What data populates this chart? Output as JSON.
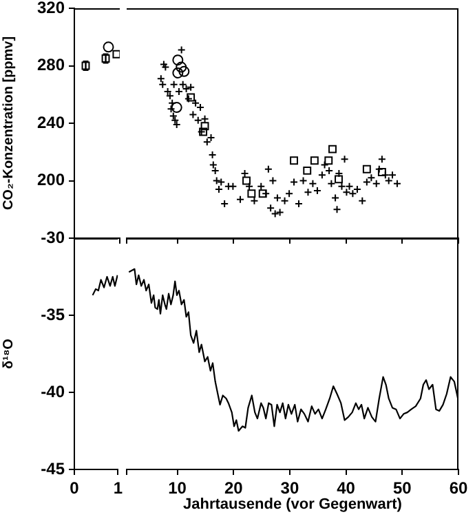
{
  "chart_data": [
    {
      "type": "scatter",
      "ylabel": "CO₂-Konzentration [ppmv]",
      "xlim": [
        0,
        1
      ],
      "xticks": [
        0,
        {
          "value": 1,
          "label": null
        }
      ],
      "ylim": [
        160,
        320
      ],
      "yticks": [
        200,
        240,
        280,
        320
      ],
      "tick_labels": "y",
      "legend": false,
      "series": [
        {
          "marker": "circle",
          "color": "#000000",
          "x": [
            0.75
          ],
          "values": [
            293
          ]
        },
        {
          "marker": "square",
          "color": "#000000",
          "x": [
            0.93
          ],
          "values": [
            288
          ]
        },
        {
          "marker": "square",
          "color": "#000000",
          "x": [
            0.25,
            0.69
          ],
          "values": [
            280,
            285
          ],
          "errors": [
            3,
            3
          ]
        }
      ]
    },
    {
      "type": "scatter",
      "xlim": [
        1,
        60
      ],
      "xticks": [
        1,
        10,
        20,
        30,
        40,
        50,
        60
      ],
      "ylim": [
        160,
        320
      ],
      "tick_labels": false,
      "legend": false,
      "series": [
        {
          "marker": "cross",
          "color": "#000000",
          "x": [
            7.1,
            7.6,
            7.4,
            7.9,
            8.3,
            8.7,
            8.9,
            9.3,
            9.6,
            9.9,
            9.1,
            9.4,
            10.3,
            10.75,
            11,
            11.6,
            12,
            12.4,
            12.8,
            13.25,
            13.7,
            14.1,
            14.3,
            14.9,
            15.3,
            16,
            16.25,
            16.4,
            16.75,
            17,
            17.4,
            17.8,
            18.4,
            19.1,
            19.9,
            21.2,
            22,
            22.8,
            23.7,
            24.9,
            25.75,
            26.2,
            26.6,
            27,
            27.4,
            27.8,
            28.25,
            29.1,
            29.9,
            30.75,
            31.6,
            32.4,
            33.25,
            34.1,
            34.9,
            35.75,
            36.2,
            37,
            37.4,
            38.1,
            38.4,
            38.75,
            39.25,
            39.75,
            40.1,
            40.6,
            41.2,
            42,
            42.9,
            43.7,
            44.5,
            45.4,
            45.9,
            46.4,
            47,
            47.6,
            48.25,
            49.1
          ],
          "values": [
            271,
            281,
            267,
            279,
            262,
            259,
            250,
            245,
            242,
            239,
            254,
            267,
            262,
            291,
            267,
            264,
            257,
            265,
            246,
            254,
            242,
            251,
            234,
            243,
            227,
            230,
            218,
            211,
            207,
            200,
            194,
            199,
            184,
            196,
            196,
            187,
            205,
            196,
            186,
            196,
            191,
            208,
            181,
            200,
            177,
            188,
            178,
            186,
            191,
            199,
            184,
            200,
            192,
            198,
            193,
            204,
            211,
            207,
            198,
            188,
            180,
            205,
            196,
            215,
            192,
            196,
            191,
            194,
            186,
            199,
            202,
            198,
            208,
            215,
            204,
            200,
            204,
            198
          ]
        },
        {
          "marker": "circle",
          "color": "#000000",
          "x": [
            10.1,
            10.1,
            10.7,
            11.2,
            9.9
          ],
          "values": [
            284,
            275,
            279,
            276,
            251
          ]
        },
        {
          "marker": "square",
          "color": "#000000",
          "x": [
            12.4,
            14.9,
            14.6,
            22.3,
            23.2,
            25.2,
            30.75,
            33.1,
            34.4,
            36.9,
            37.6,
            38.7,
            43.7,
            46.4
          ],
          "values": [
            258,
            238,
            234,
            200,
            191,
            191,
            214,
            207,
            214,
            214,
            222,
            201,
            208,
            206
          ]
        }
      ]
    },
    {
      "type": "line",
      "ylabel": "δ¹⁸O",
      "xlim": [
        0,
        1
      ],
      "xticks": [
        0,
        1
      ],
      "ylim": [
        -45,
        -30
      ],
      "yticks": [
        -45,
        -40,
        -35,
        -30
      ],
      "legend": false,
      "marker": "none",
      "line_style": "solid",
      "series": [
        {
          "color": "#000000",
          "x": [
            0.42,
            0.49,
            0.55,
            0.61,
            0.68,
            0.75,
            0.82,
            0.88,
            0.93,
            0.99
          ],
          "values": [
            -33.7,
            -33.3,
            -33.4,
            -32.7,
            -33.2,
            -32.5,
            -33.1,
            -32.5,
            -33.1,
            -32.4
          ]
        }
      ]
    },
    {
      "type": "line",
      "xlabel": "Jahrtausende (vor Gegenwart)",
      "xlim": [
        1,
        60
      ],
      "xticks": [
        {
          "value": 1,
          "label": null
        },
        10,
        20,
        30,
        40,
        50,
        60
      ],
      "ylim": [
        -45,
        -30
      ],
      "tick_labels": "x",
      "legend": false,
      "marker": "none",
      "line_style": "solid",
      "series": [
        {
          "color": "#000000",
          "x": [
            1.4,
            2.4,
            2.73,
            3.13,
            3.6,
            4.07,
            4.47,
            4.93,
            5.4,
            5.8,
            6.07,
            6.47,
            6.73,
            7,
            7.4,
            7.8,
            8.07,
            8.47,
            8.87,
            9.27,
            9.6,
            9.93,
            10.3,
            10.75,
            11.2,
            11.6,
            12,
            12.4,
            12.9,
            13.4,
            13.9,
            14.3,
            14.9,
            15.4,
            15.9,
            16.3,
            16.75,
            17.2,
            17.6,
            18.1,
            18.7,
            19.1,
            19.7,
            20.1,
            20.5,
            20.9,
            21.6,
            22.1,
            22.6,
            23.25,
            23.8,
            24.25,
            24.9,
            25.3,
            25.75,
            26.25,
            26.75,
            27.25,
            27.75,
            28.25,
            28.75,
            29.25,
            29.75,
            30.3,
            30.9,
            31.4,
            32,
            32.6,
            33.25,
            33.9,
            34.5,
            35.1,
            35.75,
            36.4,
            37.1,
            37.75,
            38.4,
            39.1,
            39.75,
            40.4,
            41.1,
            41.75,
            42.25,
            42.75,
            43.25,
            43.9,
            44.6,
            45.25,
            45.9,
            46.6,
            47.1,
            47.6,
            48.25,
            48.9,
            49.6,
            50.25,
            50.9,
            51.6,
            52.4,
            53.25,
            53.75,
            54.25,
            54.75,
            55.4,
            56,
            56.6,
            57.25,
            57.9,
            58.6,
            59.25,
            59.9
          ],
          "values": [
            -32.2,
            -32,
            -33,
            -32.4,
            -33.1,
            -32.7,
            -33.4,
            -33,
            -34.2,
            -33.7,
            -34.5,
            -34.6,
            -34,
            -34.9,
            -33.7,
            -34.3,
            -34.6,
            -33.6,
            -34.3,
            -33.7,
            -32.8,
            -33.7,
            -33.4,
            -34.3,
            -34,
            -35.1,
            -34.8,
            -36.3,
            -36.8,
            -36,
            -37.4,
            -36.9,
            -38,
            -37.7,
            -38.6,
            -38.1,
            -39.3,
            -40.1,
            -40.8,
            -40.2,
            -40.4,
            -40.7,
            -41.3,
            -42.2,
            -41.8,
            -42.5,
            -42.2,
            -42.3,
            -41,
            -40.2,
            -41.3,
            -41.7,
            -40.7,
            -41,
            -41.7,
            -40.7,
            -40.8,
            -42.2,
            -40.8,
            -41.3,
            -40.7,
            -41.7,
            -40.8,
            -41.4,
            -40.8,
            -41.9,
            -41.1,
            -41.4,
            -41.9,
            -40.9,
            -41.4,
            -41.1,
            -41.7,
            -41.1,
            -40.4,
            -39.6,
            -40.1,
            -40.7,
            -41.8,
            -41.6,
            -41.3,
            -40.7,
            -41.1,
            -40.8,
            -41.7,
            -41,
            -41.6,
            -41.9,
            -40.4,
            -39,
            -39.5,
            -40.4,
            -41,
            -41.1,
            -41.7,
            -41.4,
            -41.3,
            -41.1,
            -40.9,
            -40.4,
            -39.5,
            -39.2,
            -39.8,
            -39.5,
            -41.1,
            -41.2,
            -40.8,
            -40.1,
            -39,
            -39.3,
            -40.4
          ]
        }
      ]
    }
  ]
}
